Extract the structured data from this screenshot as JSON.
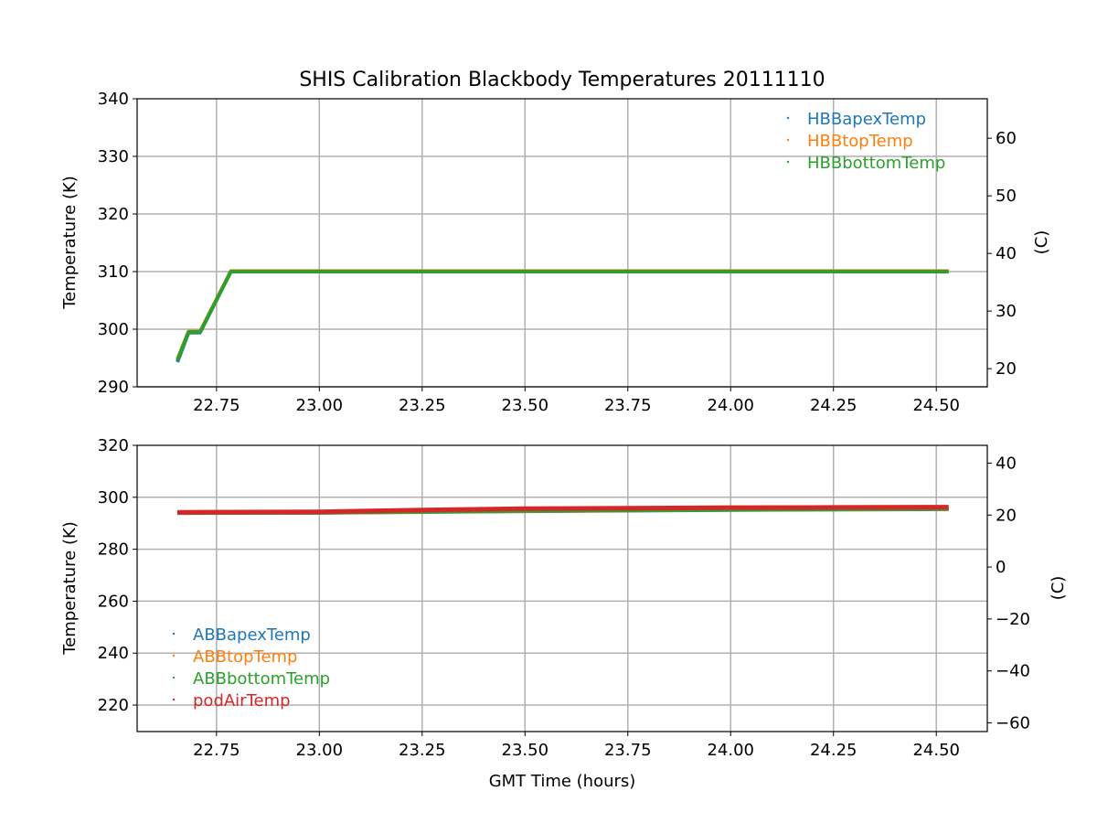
{
  "chart_data": [
    {
      "type": "line",
      "title": "SHIS Calibration Blackbody Temperatures 20111110",
      "xlabel": "",
      "ylabel": "Temperature (K)",
      "ylabel_right": "(C)",
      "xlim": [
        22.557,
        24.624
      ],
      "ylim": [
        290,
        340
      ],
      "xticks": [
        "22.75",
        "23.00",
        "23.25",
        "23.50",
        "23.75",
        "24.00",
        "24.25",
        "24.50"
      ],
      "xtick_values": [
        22.75,
        23.0,
        23.25,
        23.5,
        23.75,
        24.0,
        24.25,
        24.5
      ],
      "yticks": [
        290,
        300,
        310,
        320,
        330,
        340
      ],
      "yticks_right": [
        20,
        30,
        40,
        50,
        60
      ],
      "grid": true,
      "legend_position": "top-right",
      "series": [
        {
          "name": "HBBapexTemp",
          "color": "#1f77b4",
          "x": [
            22.655,
            22.682,
            22.71,
            22.785,
            24.53
          ],
          "y": [
            294.3,
            299.4,
            299.4,
            310.0,
            310.0
          ]
        },
        {
          "name": "HBBtopTemp",
          "color": "#ff7f0e",
          "x": [
            22.655,
            22.682,
            22.71,
            22.785,
            24.53
          ],
          "y": [
            294.8,
            299.6,
            299.6,
            310.1,
            310.1
          ]
        },
        {
          "name": "HBBbottomTemp",
          "color": "#2ca02c",
          "x": [
            22.655,
            22.682,
            22.71,
            22.785,
            24.53
          ],
          "y": [
            294.6,
            299.5,
            299.5,
            310.0,
            310.0
          ]
        }
      ]
    },
    {
      "type": "line",
      "title": "",
      "xlabel": "GMT Time (hours)",
      "ylabel": "Temperature (K)",
      "ylabel_right": "(C)",
      "xlim": [
        22.557,
        24.624
      ],
      "ylim": [
        209.8,
        320
      ],
      "xticks": [
        "22.75",
        "23.00",
        "23.25",
        "23.50",
        "23.75",
        "24.00",
        "24.25",
        "24.50"
      ],
      "xtick_values": [
        22.75,
        23.0,
        23.25,
        23.5,
        23.75,
        24.0,
        24.25,
        24.5
      ],
      "yticks": [
        220,
        240,
        260,
        280,
        300,
        320
      ],
      "yticks_right": [
        -60,
        -40,
        -20,
        0,
        20,
        40
      ],
      "yticks_right_labels": [
        "−60",
        "−40",
        "−20",
        "0",
        "20",
        "40"
      ],
      "grid": true,
      "legend_position": "bottom-left",
      "series": [
        {
          "name": "ABBapexTemp",
          "color": "#1f77b4",
          "x": [
            22.655,
            23.0,
            23.5,
            24.0,
            24.53
          ],
          "y": [
            293.9,
            294.0,
            294.6,
            295.1,
            295.4
          ]
        },
        {
          "name": "ABBtopTemp",
          "color": "#ff7f0e",
          "x": [
            22.655,
            23.0,
            23.5,
            24.0,
            24.53
          ],
          "y": [
            294.0,
            294.1,
            294.7,
            295.2,
            295.5
          ]
        },
        {
          "name": "ABBbottomTemp",
          "color": "#2ca02c",
          "x": [
            22.655,
            23.0,
            23.5,
            24.0,
            24.53
          ],
          "y": [
            294.0,
            294.1,
            294.8,
            295.2,
            295.6
          ]
        },
        {
          "name": "podAirTemp",
          "color": "#d62728",
          "x": [
            22.655,
            23.0,
            23.25,
            23.5,
            23.75,
            24.0,
            24.25,
            24.53
          ],
          "y": [
            294.2,
            294.4,
            295.1,
            295.6,
            295.8,
            296.0,
            296.1,
            296.2
          ]
        }
      ]
    }
  ]
}
